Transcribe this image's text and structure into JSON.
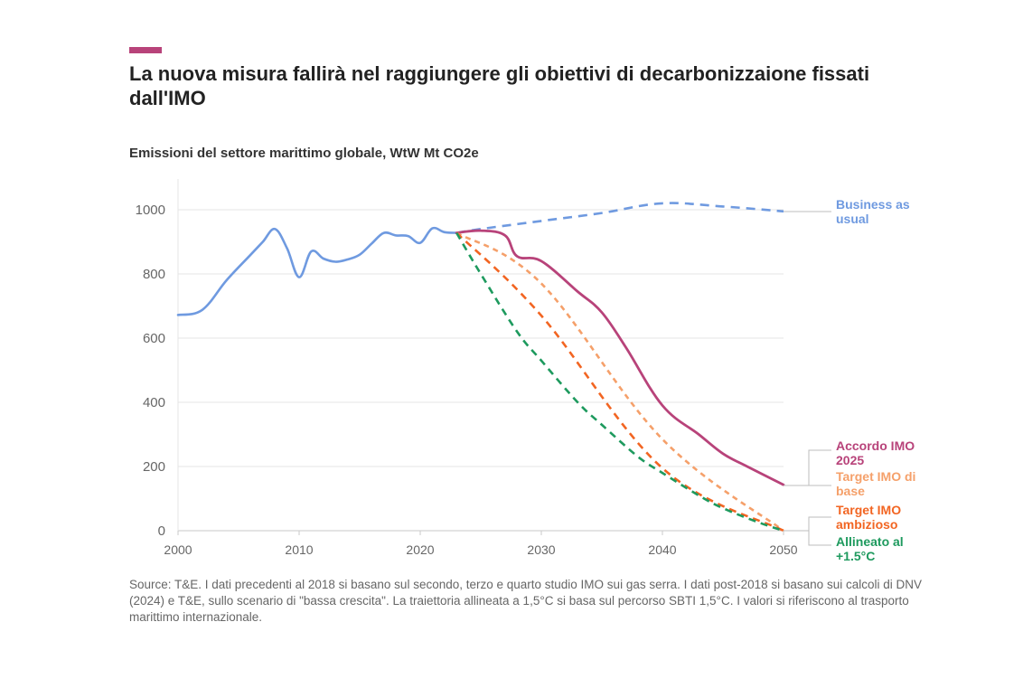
{
  "header": {
    "accent_color": "#b8437a",
    "title": "La nuova misura fallirà nel raggiungere gli obiettivi di decarbonizzaione fissati dall'IMO",
    "subtitle": "Emissioni del settore marittimo globale, WtW Mt CO2e"
  },
  "footer": {
    "source": "Source: T&E. I dati precedenti al 2018 si basano sul secondo, terzo e quarto studio IMO sui gas serra. I dati post-2018 si basano sui calcoli di DNV (2024) e T&E, sullo scenario di \"bassa crescita\". La traiettoria allineata a 1,5°C si basa sul percorso SBTI 1,5°C. I valori si riferiscono al trasporto marittimo internazionale."
  },
  "chart_data": {
    "type": "line",
    "title": "La nuova misura fallirà nel raggiungere gli obiettivi di decarbonizzaione fissati dall'IMO",
    "subtitle": "Emissioni del settore marittimo globale, WtW Mt CO2e",
    "xlabel": "",
    "ylabel": "",
    "xlim": [
      2000,
      2050
    ],
    "ylim": [
      0,
      1100
    ],
    "x_ticks": [
      2000,
      2010,
      2020,
      2030,
      2040,
      2050
    ],
    "y_ticks": [
      0,
      200,
      400,
      600,
      800,
      1000
    ],
    "grid": "horizontal",
    "legend": "direct labels at right end of lines",
    "historical": {
      "color": "#6f9ae0",
      "x": [
        2000,
        2002,
        2004,
        2006,
        2007,
        2008,
        2009,
        2010,
        2011,
        2012,
        2013,
        2014,
        2015,
        2016,
        2017,
        2018,
        2019,
        2020,
        2021,
        2022,
        2023
      ],
      "y": [
        672,
        688,
        780,
        860,
        900,
        940,
        880,
        790,
        870,
        848,
        838,
        845,
        860,
        895,
        928,
        920,
        918,
        897,
        942,
        930,
        928
      ]
    },
    "series": [
      {
        "name": "Business as usual",
        "color": "#6f9ae0",
        "dash": "long",
        "x": [
          2023,
          2025,
          2030,
          2035,
          2040,
          2045,
          2050
        ],
        "y": [
          928,
          940,
          965,
          990,
          1020,
          1010,
          995
        ]
      },
      {
        "name": "Accordo IMO 2025",
        "color": "#b8437a",
        "dash": "solid",
        "x": [
          2023,
          2025,
          2027,
          2028,
          2030,
          2033,
          2035,
          2037,
          2040,
          2043,
          2045,
          2047,
          2050
        ],
        "y": [
          928,
          935,
          920,
          855,
          840,
          745,
          680,
          570,
          390,
          300,
          240,
          200,
          143
        ]
      },
      {
        "name": "Target IMO di base",
        "color": "#f5a06a",
        "dash": "short",
        "x": [
          2023,
          2030,
          2040,
          2050
        ],
        "y": [
          928,
          770,
          285,
          0
        ]
      },
      {
        "name": "Target IMO ambizioso",
        "color": "#f26522",
        "dash": "medium",
        "x": [
          2023,
          2030,
          2040,
          2050
        ],
        "y": [
          928,
          670,
          195,
          0
        ]
      },
      {
        "name": "Allineato al +1.5°C",
        "color": "#1e9a5e",
        "dash": "medium",
        "x": [
          2023,
          2025,
          2028,
          2030,
          2033,
          2035,
          2038,
          2040,
          2043,
          2045,
          2048,
          2050
        ],
        "y": [
          928,
          800,
          620,
          530,
          400,
          330,
          230,
          180,
          110,
          70,
          25,
          0
        ]
      }
    ],
    "labels": [
      {
        "key": "bau",
        "lines": [
          "Business as",
          "usual"
        ],
        "color": "#6f9ae0"
      },
      {
        "key": "accordo",
        "lines": [
          "Accordo IMO",
          "2025"
        ],
        "color": "#b8437a"
      },
      {
        "key": "base",
        "lines": [
          "Target IMO di",
          "base"
        ],
        "color": "#f5a06a"
      },
      {
        "key": "ambizioso",
        "lines": [
          "Target IMO",
          "ambizioso"
        ],
        "color": "#f26522"
      },
      {
        "key": "allineato",
        "lines": [
          "Allineato al",
          "+1.5°C"
        ],
        "color": "#1e9a5e"
      }
    ]
  }
}
